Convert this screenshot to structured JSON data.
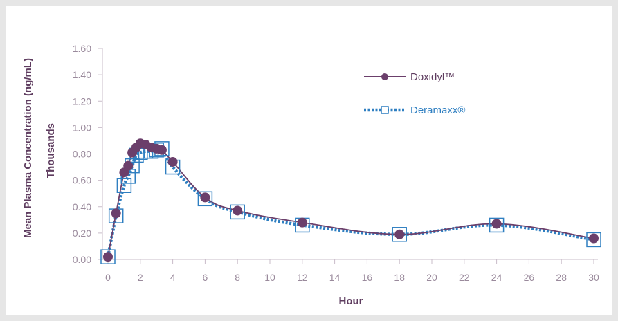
{
  "chart_data": {
    "type": "line",
    "xlabel": "Hour",
    "ylabel": "Mean Plasma Concentration (ng/mL)",
    "ylabel_secondary": "Thousands",
    "xlim": [
      0,
      30
    ],
    "ylim": [
      0,
      1.6
    ],
    "x_ticks": [
      "0",
      "2",
      "4",
      "6",
      "8",
      "10",
      "12",
      "14",
      "16",
      "18",
      "20",
      "22",
      "24",
      "26",
      "28",
      "30"
    ],
    "y_ticks": [
      "0.00",
      "0.20",
      "0.40",
      "0.60",
      "0.80",
      "1.00",
      "1.20",
      "1.40",
      "1.60"
    ],
    "grid": false,
    "legend_position": "top-right",
    "series": [
      {
        "name": "Doxidyl™",
        "color": "#6b3f6b",
        "style": "solid",
        "marker": "circle",
        "points": [
          [
            0,
            0.02
          ],
          [
            0.5,
            0.35
          ],
          [
            1,
            0.66
          ],
          [
            1.25,
            0.71
          ],
          [
            1.5,
            0.81
          ],
          [
            1.75,
            0.85
          ],
          [
            2,
            0.88
          ],
          [
            2.33,
            0.87
          ],
          [
            2.67,
            0.85
          ],
          [
            3,
            0.84
          ],
          [
            3.33,
            0.83
          ],
          [
            4,
            0.74
          ],
          [
            6,
            0.47
          ],
          [
            8,
            0.37
          ],
          [
            12,
            0.28
          ],
          [
            18,
            0.19
          ],
          [
            24,
            0.27
          ],
          [
            30,
            0.16
          ]
        ]
      },
      {
        "name": "Deramaxx®",
        "color": "#2f7fc1",
        "style": "dotted",
        "marker": "square",
        "points": [
          [
            0,
            0.02
          ],
          [
            0.5,
            0.33
          ],
          [
            1,
            0.56
          ],
          [
            1.25,
            0.63
          ],
          [
            1.5,
            0.71
          ],
          [
            1.75,
            0.79
          ],
          [
            2,
            0.81
          ],
          [
            2.33,
            0.82
          ],
          [
            2.67,
            0.82
          ],
          [
            3,
            0.83
          ],
          [
            3.33,
            0.84
          ],
          [
            4,
            0.7
          ],
          [
            6,
            0.46
          ],
          [
            8,
            0.36
          ],
          [
            12,
            0.26
          ],
          [
            18,
            0.19
          ],
          [
            24,
            0.26
          ],
          [
            30,
            0.15
          ]
        ]
      }
    ]
  }
}
